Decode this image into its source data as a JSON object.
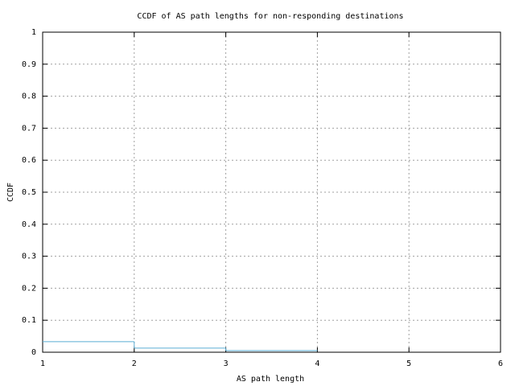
{
  "chart_data": {
    "type": "line",
    "title": "CCDF of AS path lengths for non-responding destinations",
    "xlabel": "AS path length",
    "ylabel": "CCDF",
    "x": [
      1,
      2,
      3,
      4
    ],
    "series": [
      {
        "color": "#5aaed4",
        "values": [
          0.033,
          0.013,
          0.005,
          0.005
        ]
      }
    ],
    "steps": true,
    "xlim": [
      1,
      6
    ],
    "xticks": [
      1,
      2,
      3,
      4,
      5,
      6
    ],
    "ylim": [
      0,
      1
    ],
    "yticks": [
      0,
      0.1,
      0.2,
      0.3,
      0.4,
      0.5,
      0.6,
      0.7,
      0.8,
      0.9,
      1
    ],
    "grid": true
  }
}
